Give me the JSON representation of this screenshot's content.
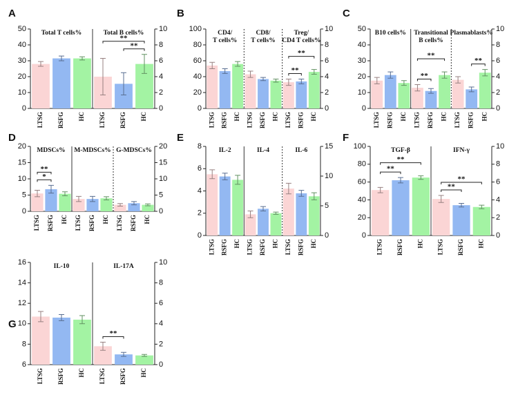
{
  "chart_data": [
    {
      "type": "bar",
      "label": "A",
      "colors": [
        "#fbd5d5",
        "#93b8f2",
        "#a3f3a3"
      ],
      "ylim": [
        0,
        50
      ],
      "yticks": [
        0,
        10,
        20,
        30,
        40,
        50
      ],
      "y2lim": [
        0,
        10
      ],
      "y2ticks": [
        0,
        2,
        4,
        6,
        8,
        10
      ],
      "separators": [
        "solid"
      ],
      "groups": [
        {
          "title": [
            "Total T cells%"
          ],
          "axis": "y",
          "categories": [
            "LTSG",
            "RSFG",
            "HC"
          ],
          "values": [
            28,
            31.5,
            31.5
          ],
          "errors": [
            1.5,
            1.5,
            1
          ],
          "annotations": []
        },
        {
          "title": [
            "Total B cells%"
          ],
          "axis": "y2",
          "categories": [
            "LTSG",
            "RSFG",
            "HC"
          ],
          "values": [
            4,
            3.1,
            5.6
          ],
          "errors": [
            2.3,
            1.4,
            1.2
          ],
          "annotations": [
            {
              "text": "**",
              "from": 1,
              "to": 2
            },
            {
              "text": "**",
              "from": 0,
              "to": 2
            }
          ]
        }
      ]
    },
    {
      "type": "bar",
      "label": "B",
      "colors": [
        "#fbd5d5",
        "#93b8f2",
        "#a3f3a3"
      ],
      "ylim": [
        0,
        100
      ],
      "yticks": [
        0,
        20,
        40,
        60,
        80,
        100
      ],
      "y2lim": [
        0,
        10
      ],
      "y2ticks": [
        0,
        2,
        4,
        6,
        8,
        10
      ],
      "separators": [
        "dashed",
        "dashed"
      ],
      "groups": [
        {
          "title": [
            "CD4/",
            "T cells%"
          ],
          "axis": "y",
          "categories": [
            "LTSG",
            "RSFG",
            "HC"
          ],
          "values": [
            54,
            47,
            56
          ],
          "errors": [
            4,
            3,
            3
          ],
          "annotations": []
        },
        {
          "title": [
            "CD8/",
            "T cells%"
          ],
          "axis": "y",
          "categories": [
            "LTSG",
            "RSFG",
            "HC"
          ],
          "values": [
            43,
            37,
            35
          ],
          "errors": [
            4,
            2,
            2
          ],
          "annotations": []
        },
        {
          "title": [
            "Treg/",
            "CD4 T cells%"
          ],
          "axis": "y2",
          "categories": [
            "LTSG",
            "RSFG",
            "HC"
          ],
          "values": [
            3.3,
            3.4,
            4.6
          ],
          "errors": [
            0.4,
            0.3,
            0.3
          ],
          "annotations": [
            {
              "text": "**",
              "from": 0,
              "to": 1
            },
            {
              "text": "**",
              "from": 0,
              "to": 2
            }
          ]
        }
      ]
    },
    {
      "type": "bar",
      "label": "C",
      "colors": [
        "#fbd5d5",
        "#93b8f2",
        "#a3f3a3"
      ],
      "ylim": [
        0,
        50
      ],
      "yticks": [
        0,
        10,
        20,
        30,
        40,
        50
      ],
      "y2lim": [
        0,
        10
      ],
      "y2ticks": [
        0,
        2,
        4,
        6,
        8,
        10
      ],
      "separators": [
        "solid",
        "dashed"
      ],
      "groups": [
        {
          "title": [
            "B10 cells%"
          ],
          "axis": "y",
          "categories": [
            "LTSG",
            "RSFG",
            "HC"
          ],
          "values": [
            17.5,
            21,
            16
          ],
          "errors": [
            2,
            2,
            1.5
          ],
          "annotations": []
        },
        {
          "title": [
            "Transitional",
            "B cells%"
          ],
          "axis": "y",
          "categories": [
            "LTSG",
            "RSFG",
            "HC"
          ],
          "values": [
            13,
            11,
            21
          ],
          "errors": [
            2,
            1.5,
            2
          ],
          "annotations": [
            {
              "text": "**",
              "from": 0,
              "to": 1
            },
            {
              "text": "**",
              "from": 0,
              "to": 2
            }
          ]
        },
        {
          "title": [
            "Plasmablasts%"
          ],
          "axis": "y2",
          "categories": [
            "LTSG",
            "RSFG",
            "HC"
          ],
          "values": [
            3.6,
            2.4,
            4.5
          ],
          "errors": [
            0.4,
            0.3,
            0.4
          ],
          "annotations": [
            {
              "text": "**",
              "from": 1,
              "to": 2
            }
          ]
        }
      ]
    },
    {
      "type": "bar",
      "label": "D",
      "colors": [
        "#fbd5d5",
        "#93b8f2",
        "#a3f3a3"
      ],
      "ylim": [
        0,
        20
      ],
      "yticks": [
        0,
        5,
        10,
        15,
        20
      ],
      "y2lim": [
        0,
        20
      ],
      "y2ticks": [
        0,
        5,
        10,
        15,
        20
      ],
      "separators": [
        "solid",
        "dashed"
      ],
      "groups": [
        {
          "title": [
            "MDSCs%"
          ],
          "axis": "y",
          "categories": [
            "LTSG",
            "RSFG",
            "HC"
          ],
          "values": [
            5.5,
            6.8,
            5.4
          ],
          "errors": [
            1,
            1.2,
            0.6
          ],
          "annotations": [
            {
              "text": "*",
              "from": 0,
              "to": 1
            },
            {
              "text": "**",
              "from": 0,
              "to": 1
            }
          ]
        },
        {
          "title": [
            "M-MDSCs%"
          ],
          "axis": "y",
          "categories": [
            "LTSG",
            "RSFG",
            "HC"
          ],
          "values": [
            3.8,
            3.8,
            4
          ],
          "errors": [
            0.8,
            0.8,
            0.5
          ],
          "annotations": []
        },
        {
          "title": [
            "G-MDSCs%"
          ],
          "axis": "y2",
          "categories": [
            "LTSG",
            "RSFG",
            "HC"
          ],
          "values": [
            2,
            2.5,
            2
          ],
          "errors": [
            0.4,
            0.5,
            0.3
          ],
          "annotations": []
        }
      ]
    },
    {
      "type": "bar",
      "label": "E",
      "colors": [
        "#fbd5d5",
        "#93b8f2",
        "#a3f3a3"
      ],
      "ylim": [
        0,
        8
      ],
      "yticks": [
        0,
        2,
        4,
        6,
        8
      ],
      "y2lim": [
        0,
        15
      ],
      "y2ticks": [
        0,
        5,
        10,
        15
      ],
      "separators": [
        "solid",
        "dashed"
      ],
      "groups": [
        {
          "title": [
            "IL-2"
          ],
          "axis": "y",
          "categories": [
            "LTSG",
            "RSFG",
            "HC"
          ],
          "values": [
            5.5,
            5.3,
            5.0
          ],
          "errors": [
            0.4,
            0.3,
            0.4
          ],
          "annotations": []
        },
        {
          "title": [
            "IL-4"
          ],
          "axis": "y",
          "categories": [
            "LTSG",
            "RSFG",
            "HC"
          ],
          "values": [
            1.9,
            2.4,
            2.0
          ],
          "errors": [
            0.3,
            0.2,
            0.1
          ],
          "annotations": []
        },
        {
          "title": [
            "IL-6"
          ],
          "axis": "y2",
          "categories": [
            "LTSG",
            "RSFG",
            "HC"
          ],
          "values": [
            7.9,
            7.1,
            6.6
          ],
          "errors": [
            0.9,
            0.5,
            0.6
          ],
          "annotations": []
        }
      ]
    },
    {
      "type": "bar",
      "label": "F",
      "colors": [
        "#fbd5d5",
        "#93b8f2",
        "#a3f3a3"
      ],
      "ylim": [
        0,
        100
      ],
      "yticks": [
        0,
        20,
        40,
        60,
        80,
        100
      ],
      "y2lim": [
        0,
        10
      ],
      "y2ticks": [
        0,
        2,
        4,
        6,
        8,
        10
      ],
      "separators": [
        "solid"
      ],
      "groups": [
        {
          "title": [
            "TGF-β"
          ],
          "axis": "y",
          "categories": [
            "LTSG",
            "RSFG",
            "HC"
          ],
          "values": [
            51,
            62,
            65
          ],
          "errors": [
            3,
            3,
            2
          ],
          "annotations": [
            {
              "text": "**",
              "from": 0,
              "to": 1
            },
            {
              "text": "**",
              "from": 0,
              "to": 2
            }
          ]
        },
        {
          "title": [
            "IFN-γ"
          ],
          "axis": "y2",
          "categories": [
            "LTSG",
            "RSFG",
            "HC"
          ],
          "values": [
            4.1,
            3.4,
            3.2
          ],
          "errors": [
            0.4,
            0.2,
            0.2
          ],
          "annotations": [
            {
              "text": "**",
              "from": 0,
              "to": 1
            },
            {
              "text": "**",
              "from": 0,
              "to": 2
            }
          ]
        }
      ]
    },
    {
      "type": "bar",
      "label": "G",
      "colors": [
        "#fbd5d5",
        "#93b8f2",
        "#a3f3a3"
      ],
      "ylim": [
        6,
        16
      ],
      "yticks": [
        6,
        8,
        10,
        12,
        14,
        16
      ],
      "y2lim": [
        0,
        10
      ],
      "y2ticks": [
        0,
        2,
        4,
        6,
        8,
        10
      ],
      "separators": [
        "solid"
      ],
      "groups": [
        {
          "title": [
            "IL-10"
          ],
          "axis": "y",
          "categories": [
            "LTSG",
            "RSFG",
            "HC"
          ],
          "values": [
            10.7,
            10.6,
            10.4
          ],
          "errors": [
            0.5,
            0.3,
            0.4
          ],
          "annotations": []
        },
        {
          "title": [
            "IL-17A"
          ],
          "axis": "y2",
          "categories": [
            "LTSG",
            "RSFG",
            "HC"
          ],
          "values": [
            1.8,
            1.0,
            0.9
          ],
          "errors": [
            0.4,
            0.2,
            0.1
          ],
          "annotations": [
            {
              "text": "**",
              "from": 0,
              "to": 1
            }
          ]
        }
      ]
    }
  ]
}
